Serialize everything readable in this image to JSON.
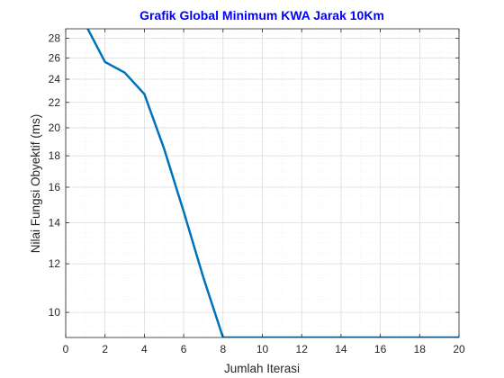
{
  "colors": {
    "title": "#0000ff",
    "line": "#0072bd",
    "axis": "#262626",
    "grid_major": "#dcdcdc",
    "grid_minor": "#ececec"
  },
  "chart_data": {
    "type": "line",
    "title": "Grafik Global Minimum KWA Jarak 10Km",
    "xlabel": "Jumlah Iterasi",
    "ylabel": "Nilai Fungsi Obyektif (ms)",
    "xlim": [
      0,
      20
    ],
    "ylim": [
      9.1,
      29.0
    ],
    "yscale": "log",
    "grid": "on (major and minor)",
    "xticks": [
      0,
      2,
      4,
      6,
      8,
      10,
      12,
      14,
      16,
      18,
      20
    ],
    "yticks": [
      10,
      12,
      14,
      16,
      18,
      20,
      22,
      24,
      26,
      28
    ],
    "series": [
      {
        "x": [
          1,
          2,
          3,
          4,
          5,
          6,
          7,
          8,
          9,
          10,
          11,
          12,
          13,
          14,
          15,
          16,
          17,
          18,
          19,
          20
        ],
        "y": [
          29.5,
          25.6,
          24.6,
          22.7,
          18.5,
          14.6,
          11.4,
          9.1,
          9.1,
          9.1,
          9.1,
          9.1,
          9.1,
          9.1,
          9.1,
          9.1,
          9.1,
          9.1,
          9.1,
          9.1
        ]
      }
    ]
  }
}
